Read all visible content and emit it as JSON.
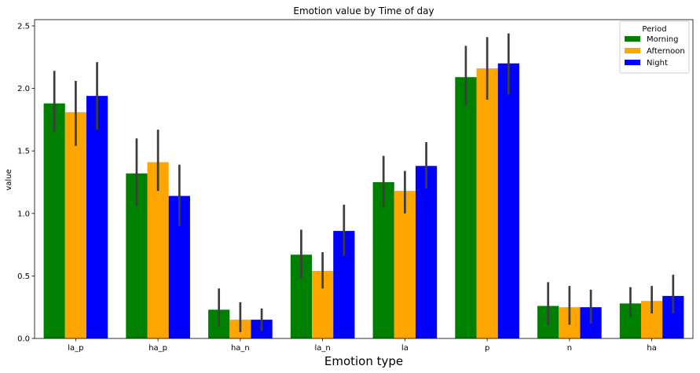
{
  "chart_data": {
    "type": "bar",
    "title": "Emotion value by Time of day",
    "xlabel": "Emotion type",
    "ylabel": "value",
    "categories": [
      "la_p",
      "ha_p",
      "ha_n",
      "la_n",
      "la",
      "p",
      "n",
      "ha"
    ],
    "yticks": [
      "0.0",
      "0.5",
      "1.0",
      "1.5",
      "2.0",
      "2.5"
    ],
    "ylim": [
      0,
      2.55
    ],
    "legend": {
      "title": "Period",
      "position": "top-right"
    },
    "series": [
      {
        "name": "Morning",
        "color": "#008000",
        "values": [
          1.88,
          1.32,
          0.23,
          0.67,
          1.25,
          2.09,
          0.26,
          0.28
        ],
        "ci": [
          [
            1.65,
            2.14
          ],
          [
            1.06,
            1.6
          ],
          [
            0.09,
            0.4
          ],
          [
            0.48,
            0.87
          ],
          [
            1.05,
            1.46
          ],
          [
            1.86,
            2.34
          ],
          [
            0.11,
            0.45
          ],
          [
            0.17,
            0.41
          ]
        ]
      },
      {
        "name": "Afternoon",
        "color": "#ffa500",
        "values": [
          1.81,
          1.41,
          0.15,
          0.54,
          1.18,
          2.16,
          0.25,
          0.3
        ],
        "ci": [
          [
            1.54,
            2.06
          ],
          [
            1.18,
            1.67
          ],
          [
            0.05,
            0.29
          ],
          [
            0.4,
            0.69
          ],
          [
            1.0,
            1.34
          ],
          [
            1.91,
            2.41
          ],
          [
            0.11,
            0.42
          ],
          [
            0.2,
            0.42
          ]
        ]
      },
      {
        "name": "Night",
        "color": "#0000ff",
        "values": [
          1.94,
          1.14,
          0.15,
          0.86,
          1.38,
          2.2,
          0.25,
          0.34
        ],
        "ci": [
          [
            1.67,
            2.21
          ],
          [
            0.9,
            1.39
          ],
          [
            0.06,
            0.24
          ],
          [
            0.66,
            1.07
          ],
          [
            1.2,
            1.57
          ],
          [
            1.95,
            2.44
          ],
          [
            0.12,
            0.39
          ],
          [
            0.2,
            0.51
          ]
        ]
      }
    ]
  }
}
